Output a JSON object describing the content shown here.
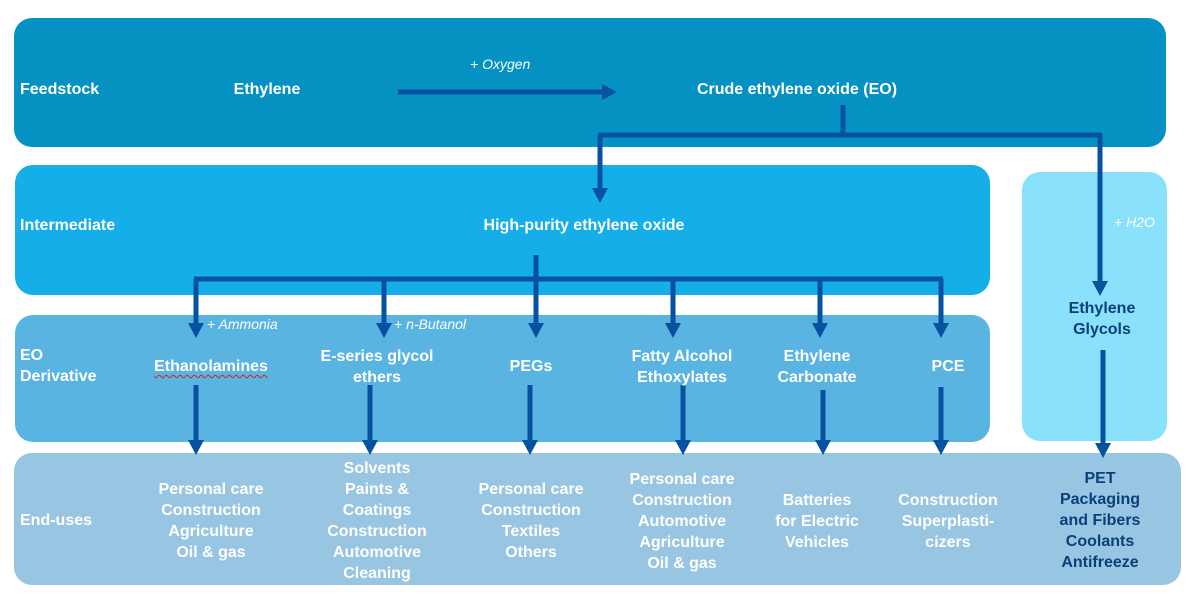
{
  "colors": {
    "feedstock": "#0592c2",
    "intermediate": "#15aee8",
    "derivative": "#5ab4e1",
    "end_uses": "#98c5e2",
    "glycol": "#8ae1fc",
    "arrow": "#0752a0"
  },
  "rows": {
    "feedstock": "Feedstock",
    "intermediate": "Intermediate",
    "derivative": "EO Derivative",
    "end_uses": "End-uses"
  },
  "feedstock": {
    "ethylene": "Ethylene",
    "oxygen": "+ Oxygen",
    "crude_eo": "Crude ethylene oxide (EO)"
  },
  "intermediate": {
    "hp_eo": "High-purity ethylene oxide",
    "h2o": "+ H2O",
    "glycols": "Ethylene Glycols"
  },
  "reagents": {
    "ammonia": "+ Ammonia",
    "butanol": "+ n-Butanol"
  },
  "derivatives": [
    {
      "name": "Ethanolamines",
      "uses": "Personal care\nConstruction\nAgriculture\nOil & gas"
    },
    {
      "name": "E-series glycol\nethers",
      "uses": "Solvents\nPaints &\nCoatings\nConstruction\nAutomotive\nCleaning"
    },
    {
      "name": "PEGs",
      "uses": "Personal care\nConstruction\nTextiles\nOthers"
    },
    {
      "name": "Fatty Alcohol\nEthoxylates",
      "uses": "Personal care\nConstruction\nAutomotive\nAgriculture\nOil & gas"
    },
    {
      "name": "Ethylene\nCarbonate",
      "uses": "Batteries\nfor Electric\nVehicles"
    },
    {
      "name": "PCE",
      "uses": "Construction\nSuperplasti-\ncizers"
    }
  ],
  "glycol_uses": "PET\nPackaging\nand Fibers\nCoolants\nAntifreeze"
}
